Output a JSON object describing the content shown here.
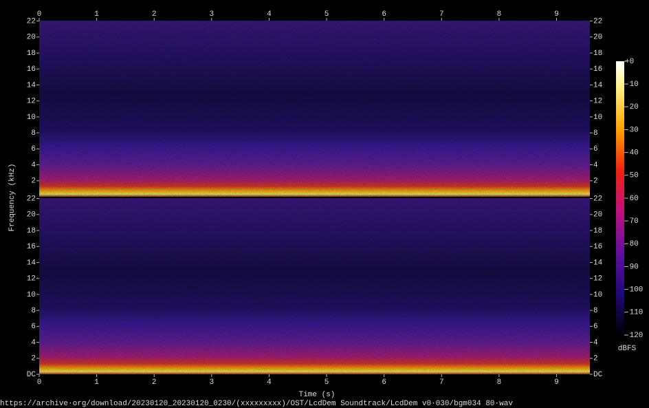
{
  "chart_data": [
    {
      "type": "spectrogram",
      "xlim": [
        0,
        9.58
      ],
      "xticks": [
        0,
        1,
        2,
        3,
        4,
        5,
        6,
        7,
        8,
        9
      ],
      "ylim": [
        0,
        22.05
      ],
      "yticks": [
        2,
        4,
        6,
        8,
        10,
        12,
        14,
        16,
        18,
        20,
        22
      ]
    },
    {
      "type": "spectrogram",
      "xlim": [
        0,
        9.58
      ],
      "xticks": [
        0,
        1,
        2,
        3,
        4,
        5,
        6,
        7,
        8,
        9
      ],
      "ylim": [
        0,
        22.05
      ],
      "yticks": [
        {
          "value": 0,
          "label": "DC"
        },
        2,
        4,
        6,
        8,
        10,
        12,
        14,
        16,
        18,
        20,
        22
      ]
    }
  ],
  "xlabel": "Time (s)",
  "ylabel": "Frequency (kHz)",
  "colorbar": {
    "label": "dBFS",
    "lim": [
      -120,
      0
    ],
    "ticks": [
      {
        "value": 0,
        "label": "+0"
      },
      -10,
      -20,
      -30,
      -40,
      -50,
      -60,
      -70,
      -80,
      -90,
      -100,
      -110,
      -120
    ]
  },
  "footer": "https://archive·org/download/20230120_20230120_0230/(xxxxxxxxx)/OST/LcdDem Soundtrack/LcdDem v0·030/bgm034 80·wav"
}
